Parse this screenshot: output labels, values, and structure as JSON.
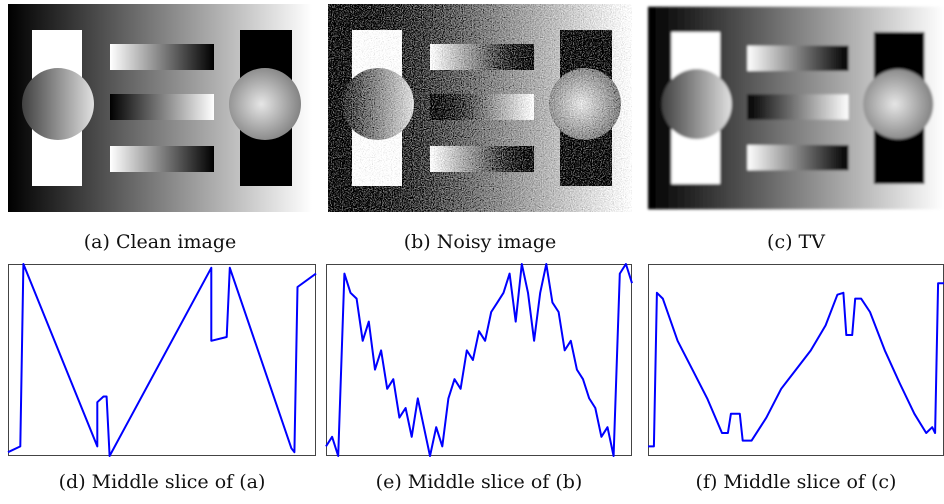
{
  "images": [
    {
      "caption": "(a) Clean image"
    },
    {
      "caption": "(b) Noisy image"
    },
    {
      "caption": "(c) TV"
    }
  ],
  "chart_data": [
    {
      "type": "line",
      "caption": "(d) Middle slice of (a)",
      "color": "#0000ff",
      "xlim": [
        0,
        1
      ],
      "ylim": [
        0,
        1
      ],
      "x": [
        0,
        0.04,
        0.05,
        0.29,
        0.29,
        0.31,
        0.32,
        0.33,
        0.66,
        0.66,
        0.71,
        0.72,
        0.92,
        0.93,
        0.94,
        1.0
      ],
      "values": [
        0.02,
        0.05,
        1.0,
        0.05,
        0.28,
        0.31,
        0.31,
        0.0,
        0.98,
        0.6,
        0.62,
        0.98,
        0.04,
        0.02,
        0.88,
        0.95
      ]
    },
    {
      "type": "line",
      "caption": "(e) Middle slice of (b)",
      "color": "#0000ff",
      "xlim": [
        0,
        1
      ],
      "ylim": [
        0,
        1
      ],
      "x": [
        0,
        0.02,
        0.04,
        0.06,
        0.08,
        0.1,
        0.12,
        0.14,
        0.16,
        0.18,
        0.2,
        0.22,
        0.24,
        0.26,
        0.28,
        0.3,
        0.32,
        0.34,
        0.36,
        0.38,
        0.4,
        0.42,
        0.44,
        0.46,
        0.48,
        0.5,
        0.52,
        0.54,
        0.56,
        0.58,
        0.6,
        0.62,
        0.64,
        0.66,
        0.68,
        0.7,
        0.72,
        0.74,
        0.76,
        0.78,
        0.8,
        0.82,
        0.84,
        0.86,
        0.88,
        0.9,
        0.92,
        0.94,
        0.96,
        0.98,
        1.0
      ],
      "values": [
        0.05,
        0.1,
        0.0,
        0.95,
        0.85,
        0.82,
        0.6,
        0.7,
        0.45,
        0.55,
        0.35,
        0.4,
        0.2,
        0.25,
        0.1,
        0.3,
        0.15,
        0.0,
        0.15,
        0.05,
        0.3,
        0.4,
        0.35,
        0.55,
        0.5,
        0.65,
        0.6,
        0.75,
        0.8,
        0.85,
        0.95,
        0.7,
        1.0,
        0.85,
        0.6,
        0.85,
        1.0,
        0.8,
        0.75,
        0.55,
        0.6,
        0.45,
        0.4,
        0.3,
        0.25,
        0.1,
        0.15,
        0.0,
        0.95,
        1.0,
        0.9
      ]
    },
    {
      "type": "line",
      "caption": "(f) Middle slice of (c)",
      "color": "#0000ff",
      "xlim": [
        0,
        1
      ],
      "ylim": [
        0,
        1
      ],
      "x": [
        0,
        0.02,
        0.03,
        0.05,
        0.1,
        0.15,
        0.2,
        0.25,
        0.27,
        0.28,
        0.31,
        0.32,
        0.35,
        0.4,
        0.45,
        0.5,
        0.55,
        0.6,
        0.64,
        0.66,
        0.67,
        0.69,
        0.7,
        0.72,
        0.75,
        0.8,
        0.85,
        0.9,
        0.94,
        0.96,
        0.97,
        0.98,
        1
      ],
      "values": [
        0.05,
        0.05,
        0.85,
        0.82,
        0.6,
        0.45,
        0.3,
        0.12,
        0.12,
        0.22,
        0.22,
        0.08,
        0.08,
        0.2,
        0.35,
        0.45,
        0.55,
        0.68,
        0.84,
        0.85,
        0.63,
        0.63,
        0.82,
        0.82,
        0.75,
        0.55,
        0.38,
        0.22,
        0.12,
        0.15,
        0.12,
        0.9,
        0.9
      ]
    }
  ]
}
